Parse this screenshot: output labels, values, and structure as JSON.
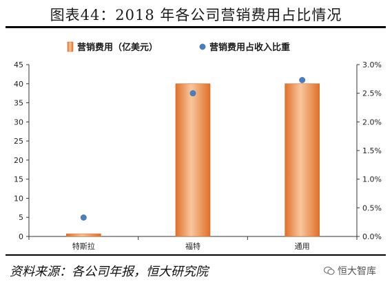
{
  "header": {
    "title": "图表44：2018 年各公司营销费用占比情况"
  },
  "footer": {
    "source": "资料来源：各公司年报，恒大研究院",
    "watermark": "恒大智库",
    "watermark_icon": "wechat-icon"
  },
  "colors": {
    "bar": "#E8823A",
    "bar_light": "#F6C49A",
    "dot": "#4A7EBB"
  },
  "chart_data": {
    "type": "bar",
    "categories": [
      "特斯拉",
      "福特",
      "通用"
    ],
    "series": [
      {
        "name": "营销费用（亿美元）",
        "type": "bar",
        "axis": "left",
        "values": [
          0.7,
          40,
          40
        ]
      },
      {
        "name": "营销费用占收入比重",
        "type": "scatter",
        "axis": "right",
        "values": [
          0.0033,
          0.025,
          0.0273
        ]
      }
    ],
    "y_left": {
      "min": 0,
      "max": 45,
      "ticks": [
        "0",
        "5",
        "10",
        "15",
        "20",
        "25",
        "30",
        "35",
        "40",
        "45"
      ]
    },
    "y_right": {
      "min": 0,
      "max": 0.03,
      "ticks": [
        "0.0%",
        "0.5%",
        "1.0%",
        "1.5%",
        "2.0%",
        "2.5%",
        "3.0%"
      ]
    },
    "legend_position": "top",
    "grid": false
  }
}
